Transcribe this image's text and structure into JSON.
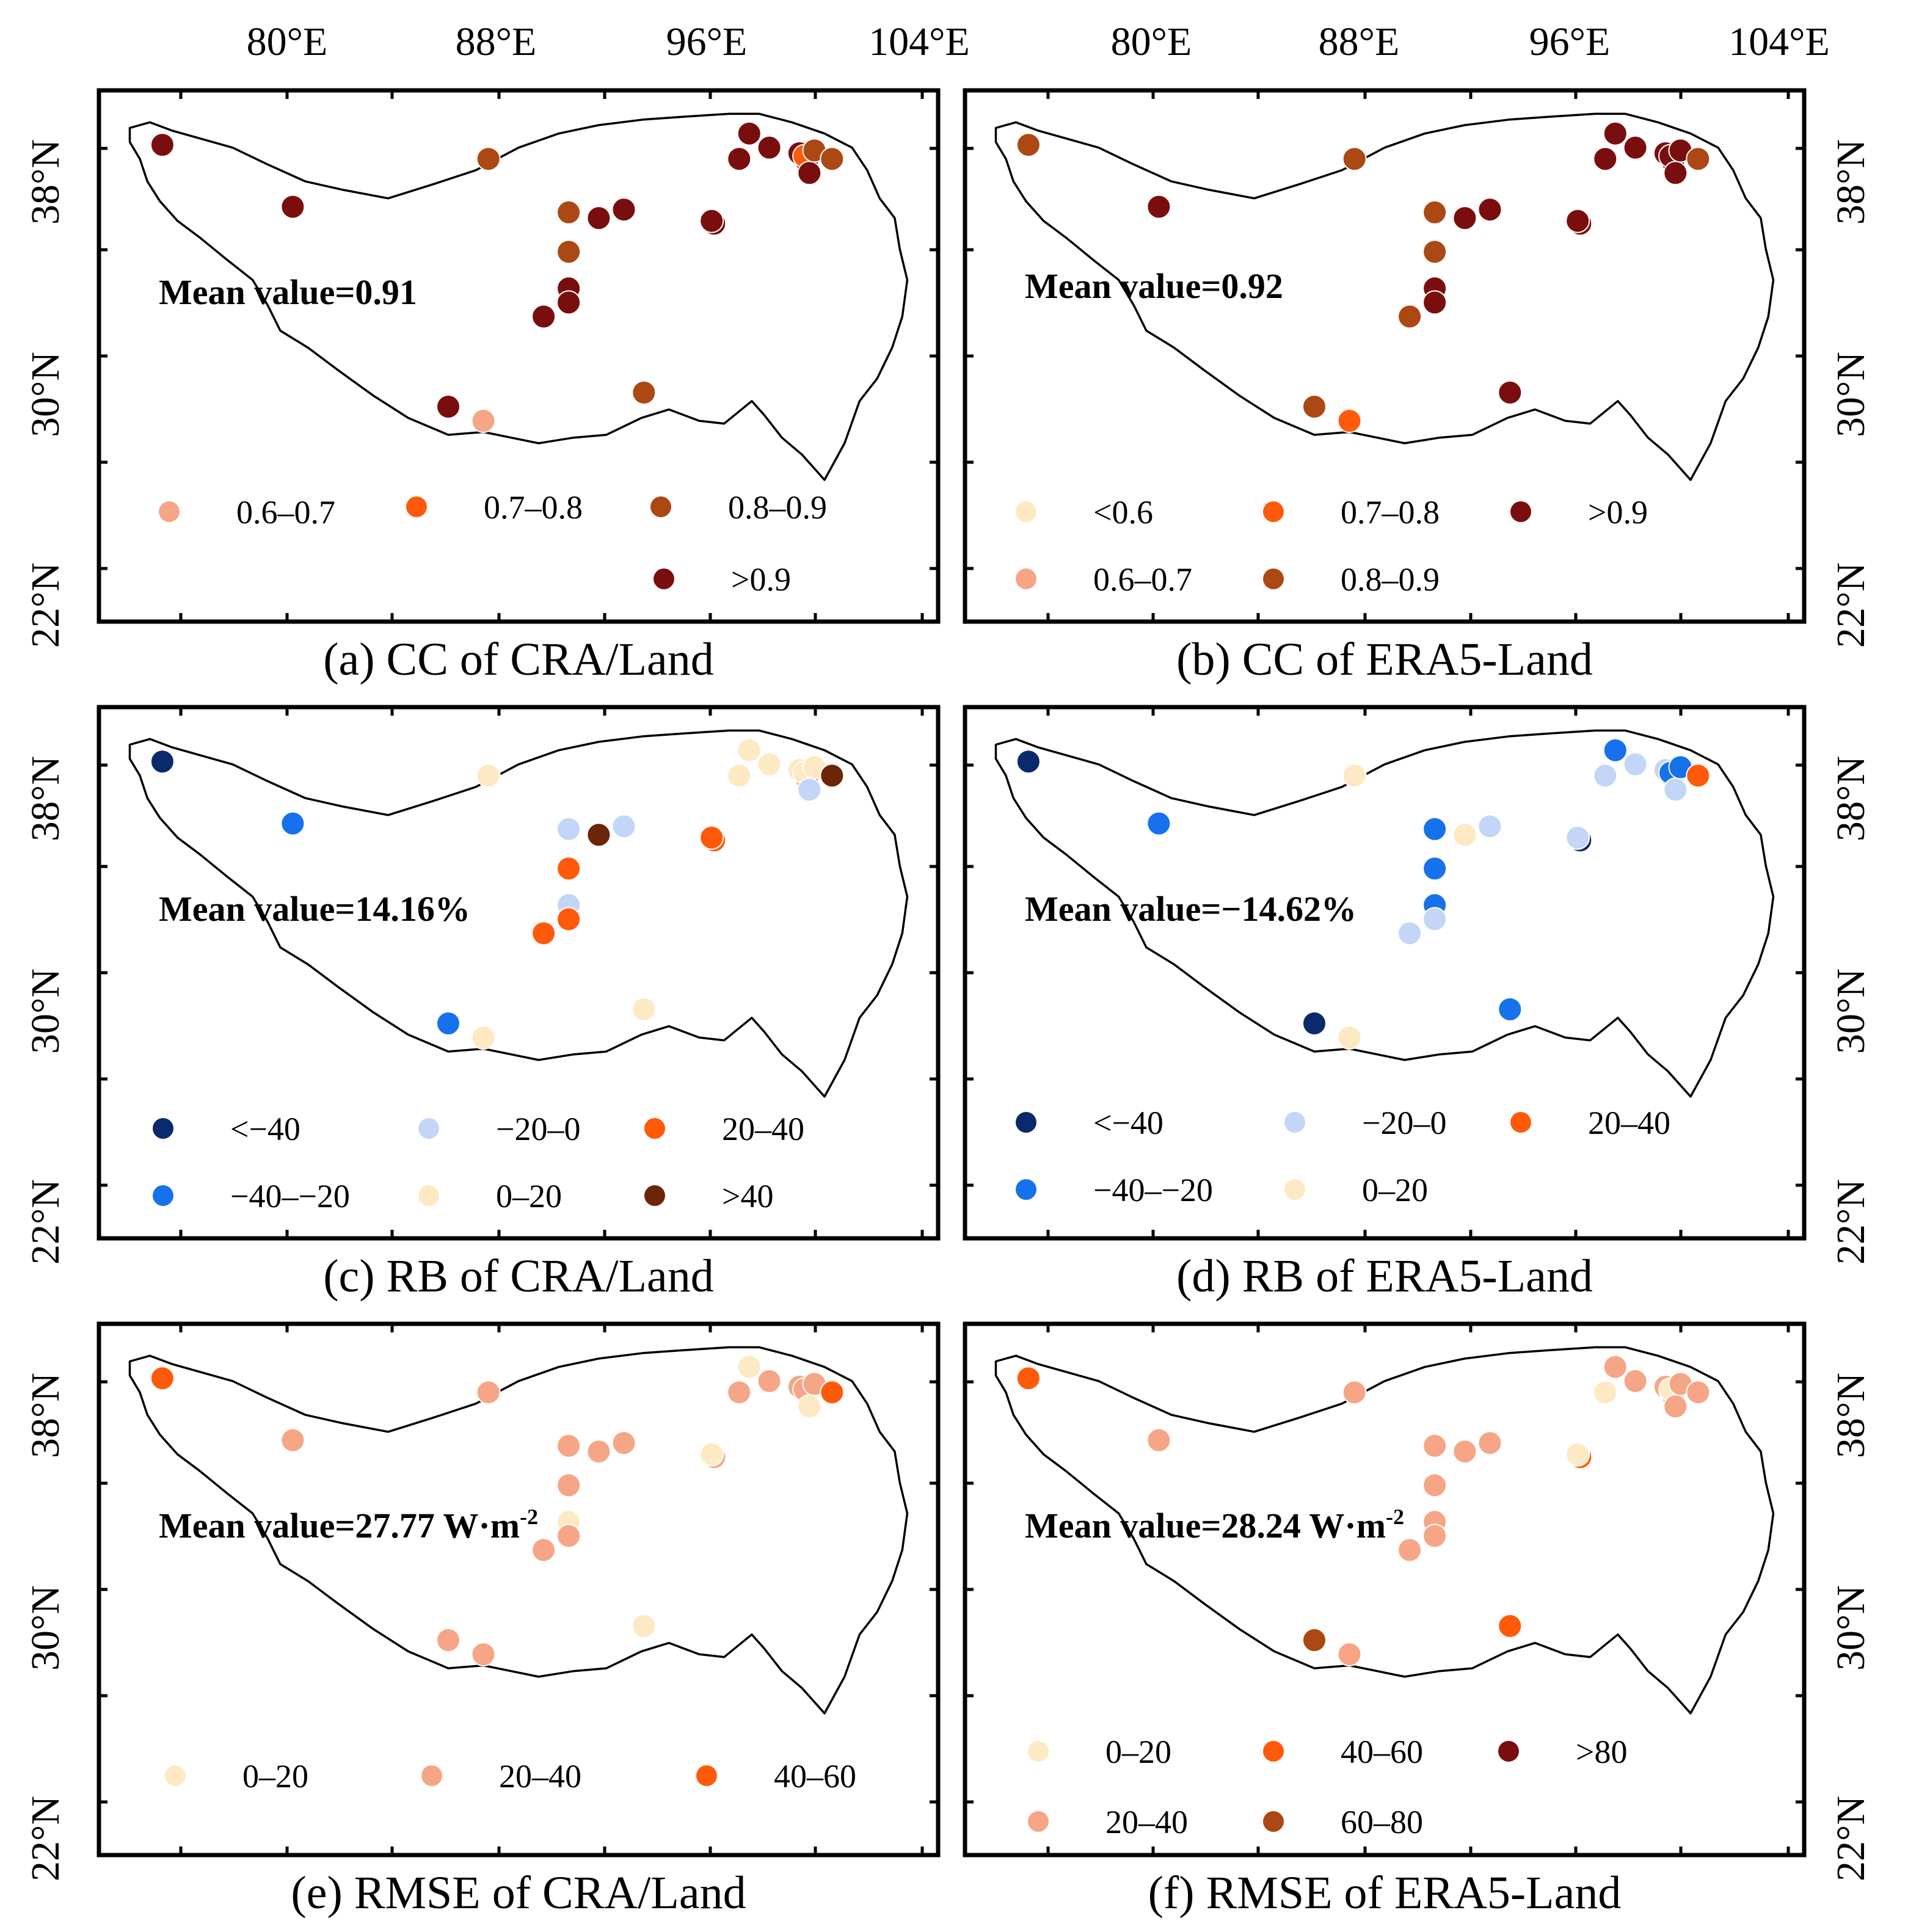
{
  "figure": {
    "lon_labels": [
      "80°E",
      "88°E",
      "96°E",
      "104°E"
    ],
    "lat_labels": [
      "38°N",
      "30°N",
      "22°N"
    ],
    "lon_ticks_deg": [
      74,
      80,
      88,
      96,
      104
    ],
    "lat_ticks_deg": [
      42,
      38,
      34,
      30,
      26,
      22
    ],
    "extent": {
      "lon_min": 73,
      "lon_max": 105,
      "lat_min": 22,
      "lat_max": 40
    }
  },
  "colors": {
    "c_lt_neg40": "#0b2a6b",
    "c_neg40_20": "#1671ec",
    "c_neg20_0": "#c4d6f7",
    "c_0_20": "#fde9c3",
    "c_20_40_rb": "#ff5a0a",
    "c_gt40_rb": "#6b2508",
    "c_lt06": "#fde9c3",
    "c_06_07": "#f6a686",
    "c_07_08": "#ff5a0a",
    "c_08_09": "#ac4813",
    "c_gt09": "#7a0e0e",
    "c_r0_20": "#fde9c3",
    "c_r20_40": "#f6a686",
    "c_r40_60": "#ff5a0a",
    "c_r60_80": "#ac4813",
    "c_r_gt80": "#7a0e0e"
  },
  "stations": [
    [
      74.8,
      38.5
    ],
    [
      80.0,
      36.3
    ],
    [
      87.8,
      38.0
    ],
    [
      91.0,
      36.1
    ],
    [
      92.2,
      35.9
    ],
    [
      93.2,
      36.2
    ],
    [
      91.0,
      34.7
    ],
    [
      91.0,
      33.4
    ],
    [
      91.0,
      32.9
    ],
    [
      90.0,
      32.4
    ],
    [
      86.2,
      29.2
    ],
    [
      87.6,
      28.7
    ],
    [
      94.0,
      29.7
    ],
    [
      96.8,
      35.7
    ],
    [
      97.8,
      38.0
    ],
    [
      98.2,
      38.9
    ],
    [
      99.0,
      38.4
    ],
    [
      100.2,
      38.2
    ],
    [
      100.5,
      37.9
    ],
    [
      100.4,
      38.1
    ],
    [
      100.6,
      37.5
    ],
    [
      100.8,
      38.3
    ],
    [
      101.5,
      38.0
    ],
    [
      96.7,
      35.8
    ]
  ],
  "panels": [
    {
      "caption": "(a) CC of CRA/Land",
      "mean": "Mean value=0.91",
      "mean_unit": "",
      "classes": [
        "c_gt09",
        "c_gt09",
        "c_08_09",
        "c_08_09",
        "c_gt09",
        "c_gt09",
        "c_08_09",
        "c_gt09",
        "c_gt09",
        "c_gt09",
        "c_gt09",
        "c_06_07",
        "c_08_09",
        "c_gt09",
        "c_gt09",
        "c_gt09",
        "c_gt09",
        "c_gt09",
        "c_gt09",
        "c_07_08",
        "c_gt09",
        "c_08_09",
        "c_08_09",
        "c_gt09"
      ],
      "legend": [
        {
          "label": "0.6–0.7",
          "color": "c_06_07"
        },
        {
          "label": "0.7–0.8",
          "color": "c_07_08"
        },
        {
          "label": "0.8–0.9",
          "color": "c_08_09"
        },
        {
          "label": ">0.9",
          "color": "c_gt09"
        }
      ],
      "legend_layout": "a"
    },
    {
      "caption": "(b) CC of ERA5-Land",
      "mean": "Mean value=0.92",
      "mean_unit": "",
      "classes": [
        "c_08_09",
        "c_gt09",
        "c_08_09",
        "c_08_09",
        "c_gt09",
        "c_gt09",
        "c_08_09",
        "c_gt09",
        "c_gt09",
        "c_08_09",
        "c_08_09",
        "c_07_08",
        "c_gt09",
        "c_gt09",
        "c_gt09",
        "c_gt09",
        "c_gt09",
        "c_gt09",
        "c_gt09",
        "c_gt09",
        "c_gt09",
        "c_gt09",
        "c_08_09",
        "c_gt09"
      ],
      "legend": [
        {
          "label": "<0.6",
          "color": "c_lt06"
        },
        {
          "label": "0.7–0.8",
          "color": "c_07_08"
        },
        {
          "label": ">0.9",
          "color": "c_gt09"
        },
        {
          "label": "0.6–0.7",
          "color": "c_06_07"
        },
        {
          "label": "0.8–0.9",
          "color": "c_08_09"
        }
      ],
      "legend_layout": "b"
    },
    {
      "caption": "(c) RB of CRA/Land",
      "mean": "Mean value=14.16%",
      "mean_unit": "",
      "classes": [
        "c_lt_neg40",
        "c_neg40_20",
        "c_0_20",
        "c_neg20_0",
        "c_gt40_rb",
        "c_neg20_0",
        "c_20_40_rb",
        "c_neg20_0",
        "c_20_40_rb",
        "c_20_40_rb",
        "c_neg40_20",
        "c_0_20",
        "c_0_20",
        "c_20_40_rb",
        "c_0_20",
        "c_0_20",
        "c_0_20",
        "c_0_20",
        "c_20_40_rb",
        "c_0_20",
        "c_neg20_0",
        "c_0_20",
        "c_gt40_rb",
        "c_20_40_rb"
      ],
      "legend": [
        {
          "label": "<−40",
          "color": "c_lt_neg40"
        },
        {
          "label": "−20–0",
          "color": "c_neg20_0"
        },
        {
          "label": "20–40",
          "color": "c_20_40_rb"
        },
        {
          "label": "−40–−20",
          "color": "c_neg40_20"
        },
        {
          "label": "0–20",
          "color": "c_0_20"
        },
        {
          "label": ">40",
          "color": "c_gt40_rb"
        }
      ],
      "legend_layout": "c"
    },
    {
      "caption": "(d) RB of ERA5-Land",
      "mean": "Mean value=−14.62%",
      "mean_unit": "",
      "classes": [
        "c_lt_neg40",
        "c_neg40_20",
        "c_0_20",
        "c_neg40_20",
        "c_0_20",
        "c_neg20_0",
        "c_neg40_20",
        "c_neg40_20",
        "c_neg20_0",
        "c_neg20_0",
        "c_lt_neg40",
        "c_0_20",
        "c_neg40_20",
        "c_lt_neg40",
        "c_neg20_0",
        "c_neg40_20",
        "c_neg20_0",
        "c_neg20_0",
        "c_neg20_0",
        "c_neg40_20",
        "c_neg20_0",
        "c_neg40_20",
        "c_20_40_rb",
        "c_neg20_0"
      ],
      "legend": [
        {
          "label": "<−40",
          "color": "c_lt_neg40"
        },
        {
          "label": "−20–0",
          "color": "c_neg20_0"
        },
        {
          "label": "20–40",
          "color": "c_20_40_rb"
        },
        {
          "label": "−40–−20",
          "color": "c_neg40_20"
        },
        {
          "label": "0–20",
          "color": "c_0_20"
        }
      ],
      "legend_layout": "d"
    },
    {
      "caption": "(e) RMSE of CRA/Land",
      "mean": "Mean value=27.77 W·m",
      "mean_unit": "-2",
      "classes": [
        "c_r40_60",
        "c_r20_40",
        "c_r20_40",
        "c_r20_40",
        "c_r20_40",
        "c_r20_40",
        "c_r20_40",
        "c_r0_20",
        "c_r20_40",
        "c_r20_40",
        "c_r20_40",
        "c_r20_40",
        "c_r0_20",
        "c_r20_40",
        "c_r20_40",
        "c_r0_20",
        "c_r20_40",
        "c_r20_40",
        "c_r0_20",
        "c_r20_40",
        "c_r0_20",
        "c_r20_40",
        "c_r40_60",
        "c_r0_20"
      ],
      "legend": [
        {
          "label": "0–20",
          "color": "c_r0_20"
        },
        {
          "label": "20–40",
          "color": "c_r20_40"
        },
        {
          "label": "40–60",
          "color": "c_r40_60"
        }
      ],
      "legend_layout": "e"
    },
    {
      "caption": "(f) RMSE of ERA5-Land",
      "mean": "Mean value=28.24 W·m",
      "mean_unit": "-2",
      "classes": [
        "c_r40_60",
        "c_r20_40",
        "c_r20_40",
        "c_r20_40",
        "c_r20_40",
        "c_r20_40",
        "c_r20_40",
        "c_r20_40",
        "c_r20_40",
        "c_r20_40",
        "c_r60_80",
        "c_r20_40",
        "c_r40_60",
        "c_r40_60",
        "c_r0_20",
        "c_r20_40",
        "c_r20_40",
        "c_r20_40",
        "c_r20_40",
        "c_r0_20",
        "c_r20_40",
        "c_r20_40",
        "c_r20_40",
        "c_r0_20"
      ],
      "legend": [
        {
          "label": "0–20",
          "color": "c_r0_20"
        },
        {
          "label": "40–60",
          "color": "c_r40_60"
        },
        {
          "label": ">80",
          "color": "c_r_gt80"
        },
        {
          "label": "20–40",
          "color": "c_r20_40"
        },
        {
          "label": "60–80",
          "color": "c_r60_80"
        }
      ],
      "legend_layout": "f"
    }
  ]
}
